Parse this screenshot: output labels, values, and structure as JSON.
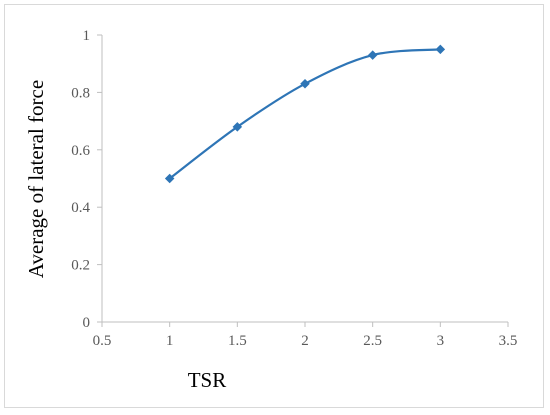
{
  "chart_data": {
    "type": "line",
    "title": "",
    "xlabel": "TSR",
    "ylabel": "Average of lateral force",
    "xlim": [
      0.5,
      3.5
    ],
    "ylim": [
      0,
      1
    ],
    "xticks": [
      0.5,
      1,
      1.5,
      2,
      2.5,
      3,
      3.5
    ],
    "yticks": [
      0,
      0.2,
      0.4,
      0.6,
      0.8,
      1
    ],
    "x_tick_labels": [
      "0.5",
      "1",
      "1.5",
      "2",
      "2.5",
      "3",
      "3.5"
    ],
    "y_tick_labels": [
      "0",
      "0.2",
      "0.4",
      "0.6",
      "0.8",
      "1"
    ],
    "grid": false,
    "legend": "none",
    "smooth": true,
    "marker": "diamond",
    "series": [
      {
        "color": "#2e75b6",
        "x": [
          1,
          1.5,
          2,
          2.5,
          3
        ],
        "y": [
          0.5,
          0.68,
          0.83,
          0.93,
          0.95
        ]
      }
    ]
  }
}
